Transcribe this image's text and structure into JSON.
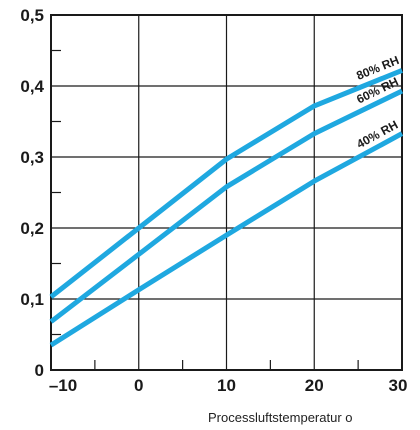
{
  "chart_data": {
    "type": "line",
    "title": "",
    "xlabel": "Processluftstemperatur o",
    "ylabel": "",
    "xlim": [
      -10,
      30
    ],
    "ylim": [
      0,
      0.5
    ],
    "grid": true,
    "x_ticks": [
      -10,
      0,
      10,
      20,
      30
    ],
    "x_tick_labels": [
      "–10",
      "0",
      "10",
      "20",
      "30"
    ],
    "y_ticks": [
      0,
      0.1,
      0.2,
      0.3,
      0.4,
      0.5
    ],
    "y_tick_labels": [
      "0",
      "0,1",
      "0,2",
      "0,3",
      "0,4",
      "0,5"
    ],
    "line_color": "#1fa8e0",
    "series": [
      {
        "name": "80% RH",
        "x": [
          -10,
          0,
          10,
          20,
          30
        ],
        "y": [
          0.103,
          0.2,
          0.297,
          0.372,
          0.422
        ]
      },
      {
        "name": "60% RH",
        "x": [
          -10,
          0,
          10,
          20,
          30
        ],
        "y": [
          0.068,
          0.163,
          0.258,
          0.333,
          0.393
        ]
      },
      {
        "name": "40% RH",
        "x": [
          -10,
          0,
          10,
          20,
          30
        ],
        "y": [
          0.035,
          0.113,
          0.19,
          0.266,
          0.333
        ]
      }
    ]
  }
}
